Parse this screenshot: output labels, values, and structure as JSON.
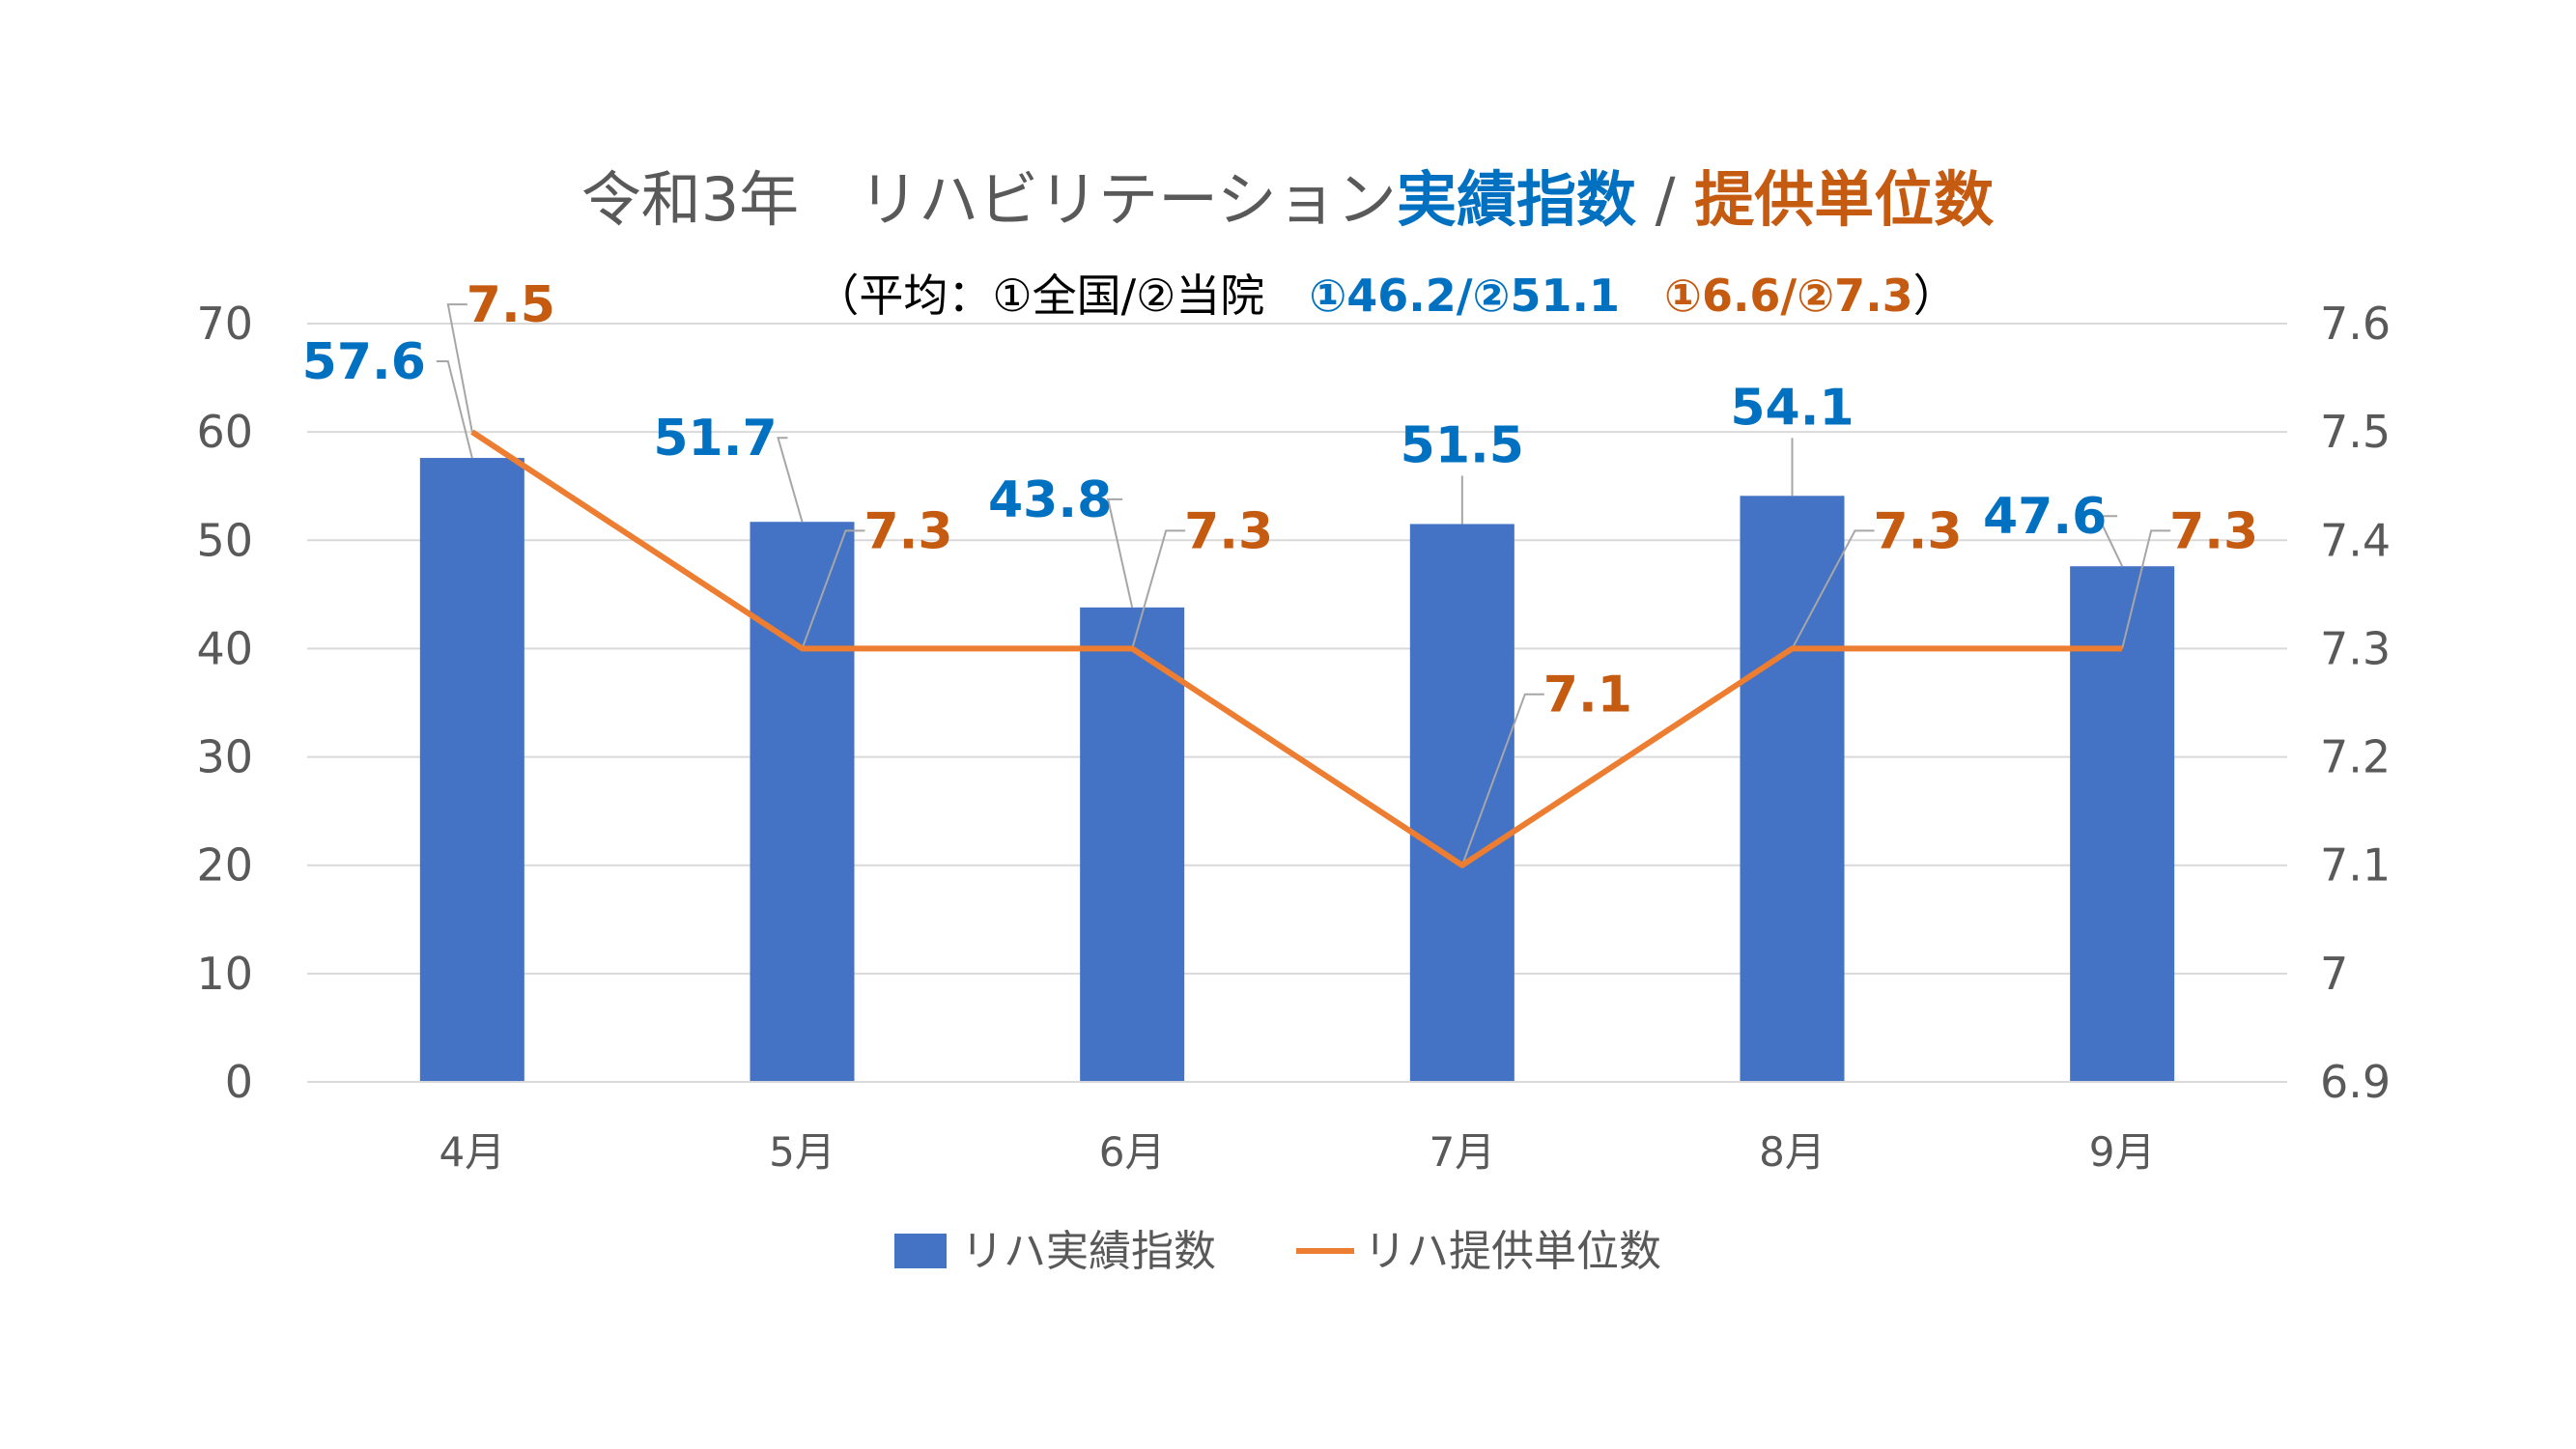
{
  "title": {
    "prefix": "令和3年　リハビリテーション",
    "blue": "実績指数",
    "sep": " / ",
    "orange": "提供単位数"
  },
  "subtitle": {
    "open": "（平均：①全国/②当院　",
    "blue": "①46.2/②51.1",
    "gap": "　",
    "orange": "①6.6/②7.3",
    "close": "）"
  },
  "colors": {
    "bar": "#4472c4",
    "line": "#ed7d31",
    "bar_label": "#0070c0",
    "line_label": "#c55a11",
    "grid": "#d9d9d9"
  },
  "chart_data": {
    "type": "bar",
    "categories": [
      "4月",
      "5月",
      "6月",
      "7月",
      "8月",
      "9月"
    ],
    "series": [
      {
        "name": "リハ実績指数",
        "type": "bar",
        "axis": "left",
        "values": [
          57.6,
          51.7,
          43.8,
          51.5,
          54.1,
          47.6
        ]
      },
      {
        "name": "リハ提供単位数",
        "type": "line",
        "axis": "right",
        "values": [
          7.5,
          7.3,
          7.3,
          7.1,
          7.3,
          7.3
        ]
      }
    ],
    "ylim": [
      0,
      70
    ],
    "y_ticks": [
      "0",
      "10",
      "20",
      "30",
      "40",
      "50",
      "60",
      "70"
    ],
    "y2lim": [
      6.9,
      7.6
    ],
    "y2_ticks": [
      "6.9",
      "7",
      "7.1",
      "7.2",
      "7.3",
      "7.4",
      "7.5",
      "7.6"
    ],
    "bar_labels": [
      "57.6",
      "51.7",
      "43.8",
      "51.5",
      "54.1",
      "47.6"
    ],
    "line_labels": [
      "7.5",
      "7.3",
      "7.3",
      "7.1",
      "7.3",
      "7.3"
    ],
    "grid": true,
    "legend": "bottom"
  }
}
